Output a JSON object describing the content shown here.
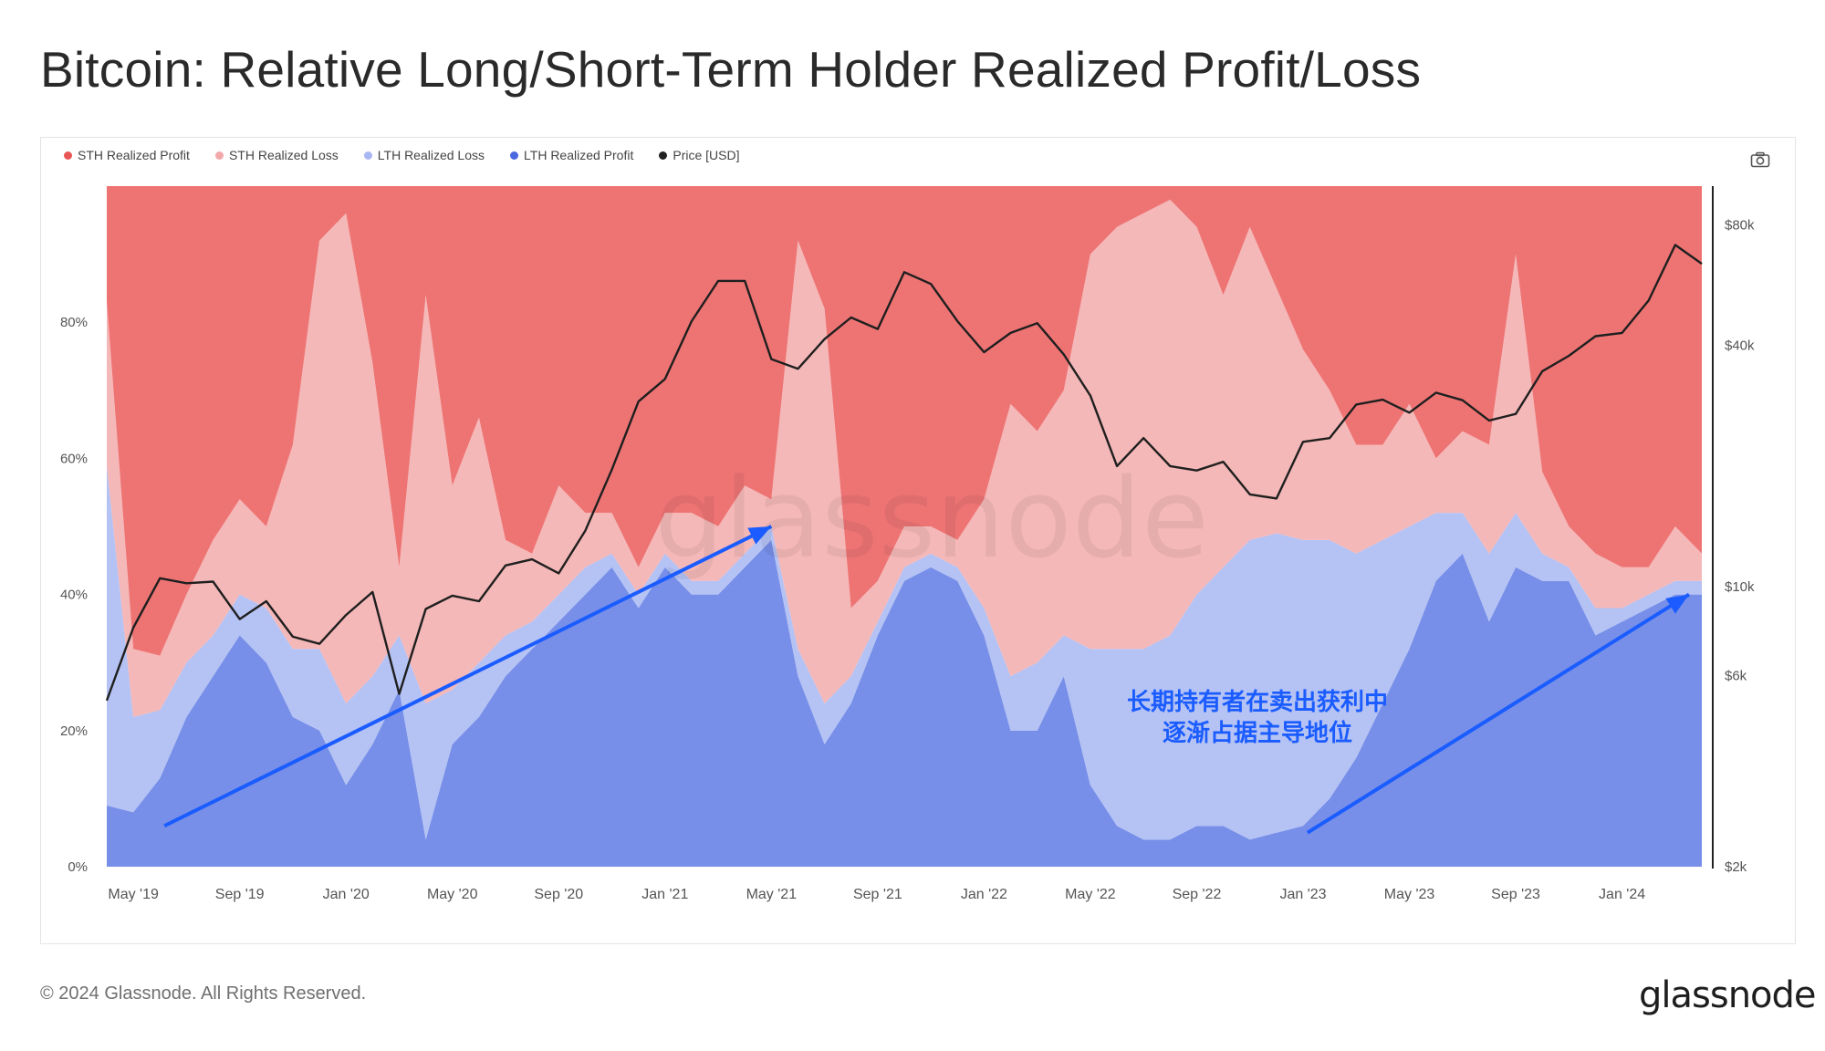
{
  "page": {
    "title": "Bitcoin: Relative Long/Short-Term Holder Realized Profit/Loss",
    "copyright": "© 2024 Glassnode. All Rights Reserved.",
    "logo": "glassnode",
    "watermark": "glassnode"
  },
  "legend": [
    {
      "label": "STH Realized Profit",
      "color": "#ee7474"
    },
    {
      "label": "STH Realized Loss",
      "color": "#f5b8b8"
    },
    {
      "label": "LTH Realized Loss",
      "color": "#b5c2f4"
    },
    {
      "label": "LTH Realized Profit",
      "color": "#778fe8"
    },
    {
      "label": "Price [USD]",
      "color": "#222222"
    }
  ],
  "icons": {
    "camera": "camera-icon"
  },
  "annotation": {
    "line1": "长期持有者在卖出获利中",
    "line2": "逐渐占据主导地位",
    "color": "#1a5cff"
  },
  "chart_data": {
    "type": "area",
    "stacked": true,
    "normalized_percent": true,
    "x": [
      "2019-04",
      "2019-05",
      "2019-06",
      "2019-07",
      "2019-08",
      "2019-09",
      "2019-10",
      "2019-11",
      "2019-12",
      "2020-01",
      "2020-02",
      "2020-03",
      "2020-04",
      "2020-05",
      "2020-06",
      "2020-07",
      "2020-08",
      "2020-09",
      "2020-10",
      "2020-11",
      "2020-12",
      "2021-01",
      "2021-02",
      "2021-03",
      "2021-04",
      "2021-05",
      "2021-06",
      "2021-07",
      "2021-08",
      "2021-09",
      "2021-10",
      "2021-11",
      "2021-12",
      "2022-01",
      "2022-02",
      "2022-03",
      "2022-04",
      "2022-05",
      "2022-06",
      "2022-07",
      "2022-08",
      "2022-09",
      "2022-10",
      "2022-11",
      "2022-12",
      "2023-01",
      "2023-02",
      "2023-03",
      "2023-04",
      "2023-05",
      "2023-06",
      "2023-07",
      "2023-08",
      "2023-09",
      "2023-10",
      "2023-11",
      "2023-12",
      "2024-01",
      "2024-02",
      "2024-03",
      "2024-04"
    ],
    "series": [
      {
        "name": "LTH Realized Profit",
        "values": [
          9,
          8,
          13,
          22,
          28,
          34,
          30,
          22,
          20,
          12,
          18,
          26,
          4,
          18,
          22,
          28,
          32,
          36,
          40,
          44,
          38,
          44,
          40,
          40,
          44,
          48,
          28,
          18,
          24,
          34,
          42,
          44,
          42,
          34,
          20,
          20,
          28,
          12,
          6,
          4,
          4,
          6,
          6,
          4,
          5,
          6,
          10,
          16,
          24,
          32,
          42,
          46,
          36,
          44,
          42,
          42,
          34,
          36,
          38,
          40,
          40
        ]
      },
      {
        "name": "LTH Realized Loss",
        "values": [
          50,
          14,
          10,
          8,
          6,
          6,
          8,
          10,
          12,
          12,
          10,
          8,
          20,
          8,
          8,
          6,
          4,
          4,
          4,
          2,
          2,
          2,
          2,
          2,
          2,
          2,
          4,
          6,
          4,
          2,
          2,
          2,
          2,
          4,
          8,
          10,
          6,
          20,
          26,
          28,
          30,
          34,
          38,
          44,
          44,
          42,
          38,
          30,
          24,
          18,
          10,
          6,
          10,
          8,
          4,
          2,
          4,
          2,
          2,
          2,
          2
        ]
      },
      {
        "name": "STH Realized Loss",
        "values": [
          24,
          10,
          8,
          10,
          14,
          14,
          12,
          30,
          60,
          72,
          46,
          10,
          60,
          30,
          36,
          14,
          10,
          16,
          8,
          6,
          4,
          6,
          10,
          8,
          10,
          4,
          60,
          58,
          10,
          6,
          6,
          4,
          4,
          16,
          40,
          34,
          36,
          58,
          62,
          64,
          64,
          54,
          40,
          46,
          36,
          28,
          22,
          16,
          14,
          18,
          8,
          12,
          16,
          38,
          12,
          6,
          8,
          6,
          4,
          8,
          4
        ]
      },
      {
        "name": "STH Realized Profit",
        "values": [
          17,
          68,
          69,
          60,
          52,
          46,
          50,
          38,
          8,
          4,
          26,
          56,
          16,
          44,
          34,
          52,
          54,
          44,
          48,
          48,
          56,
          48,
          48,
          50,
          44,
          46,
          8,
          18,
          62,
          58,
          50,
          50,
          52,
          46,
          32,
          36,
          30,
          10,
          6,
          4,
          2,
          6,
          16,
          6,
          15,
          24,
          30,
          38,
          38,
          32,
          40,
          36,
          38,
          10,
          42,
          50,
          54,
          56,
          56,
          50,
          54
        ]
      },
      {
        "name": "Price [USD]",
        "axis": "right-log",
        "values": [
          5200,
          7900,
          10500,
          10200,
          10300,
          8300,
          9200,
          7500,
          7200,
          8500,
          9700,
          5400,
          8800,
          9500,
          9200,
          11300,
          11700,
          10800,
          13800,
          19600,
          29000,
          33000,
          46000,
          58000,
          58000,
          37000,
          35000,
          41500,
          47000,
          44000,
          61000,
          57000,
          46000,
          38500,
          43000,
          45500,
          38000,
          30000,
          20000,
          23500,
          20000,
          19500,
          20500,
          17000,
          16600,
          23000,
          23500,
          28500,
          29300,
          27200,
          30500,
          29200,
          26000,
          27000,
          34500,
          37700,
          42200,
          43000,
          51800,
          71300,
          64000
        ]
      }
    ],
    "xticks": [
      "May '19",
      "Sep '19",
      "Jan '20",
      "May '20",
      "Sep '20",
      "Jan '21",
      "May '21",
      "Sep '21",
      "Jan '22",
      "May '22",
      "Sep '22",
      "Jan '23",
      "May '23",
      "Sep '23",
      "Jan '24"
    ],
    "yticks_left": [
      "0%",
      "20%",
      "40%",
      "60%",
      "80%"
    ],
    "yticks_right": [
      "$2k",
      "$6k",
      "$10k",
      "$40k",
      "$80k"
    ],
    "ylim_left": [
      0,
      100
    ],
    "ylim_right_log": [
      2000,
      100000
    ],
    "arrows": [
      {
        "from": [
          "2019-05",
          6
        ],
        "to": [
          "2021-05",
          50
        ]
      },
      {
        "from": [
          "2022-12",
          5
        ],
        "to": [
          "2024-04",
          40
        ]
      }
    ]
  }
}
